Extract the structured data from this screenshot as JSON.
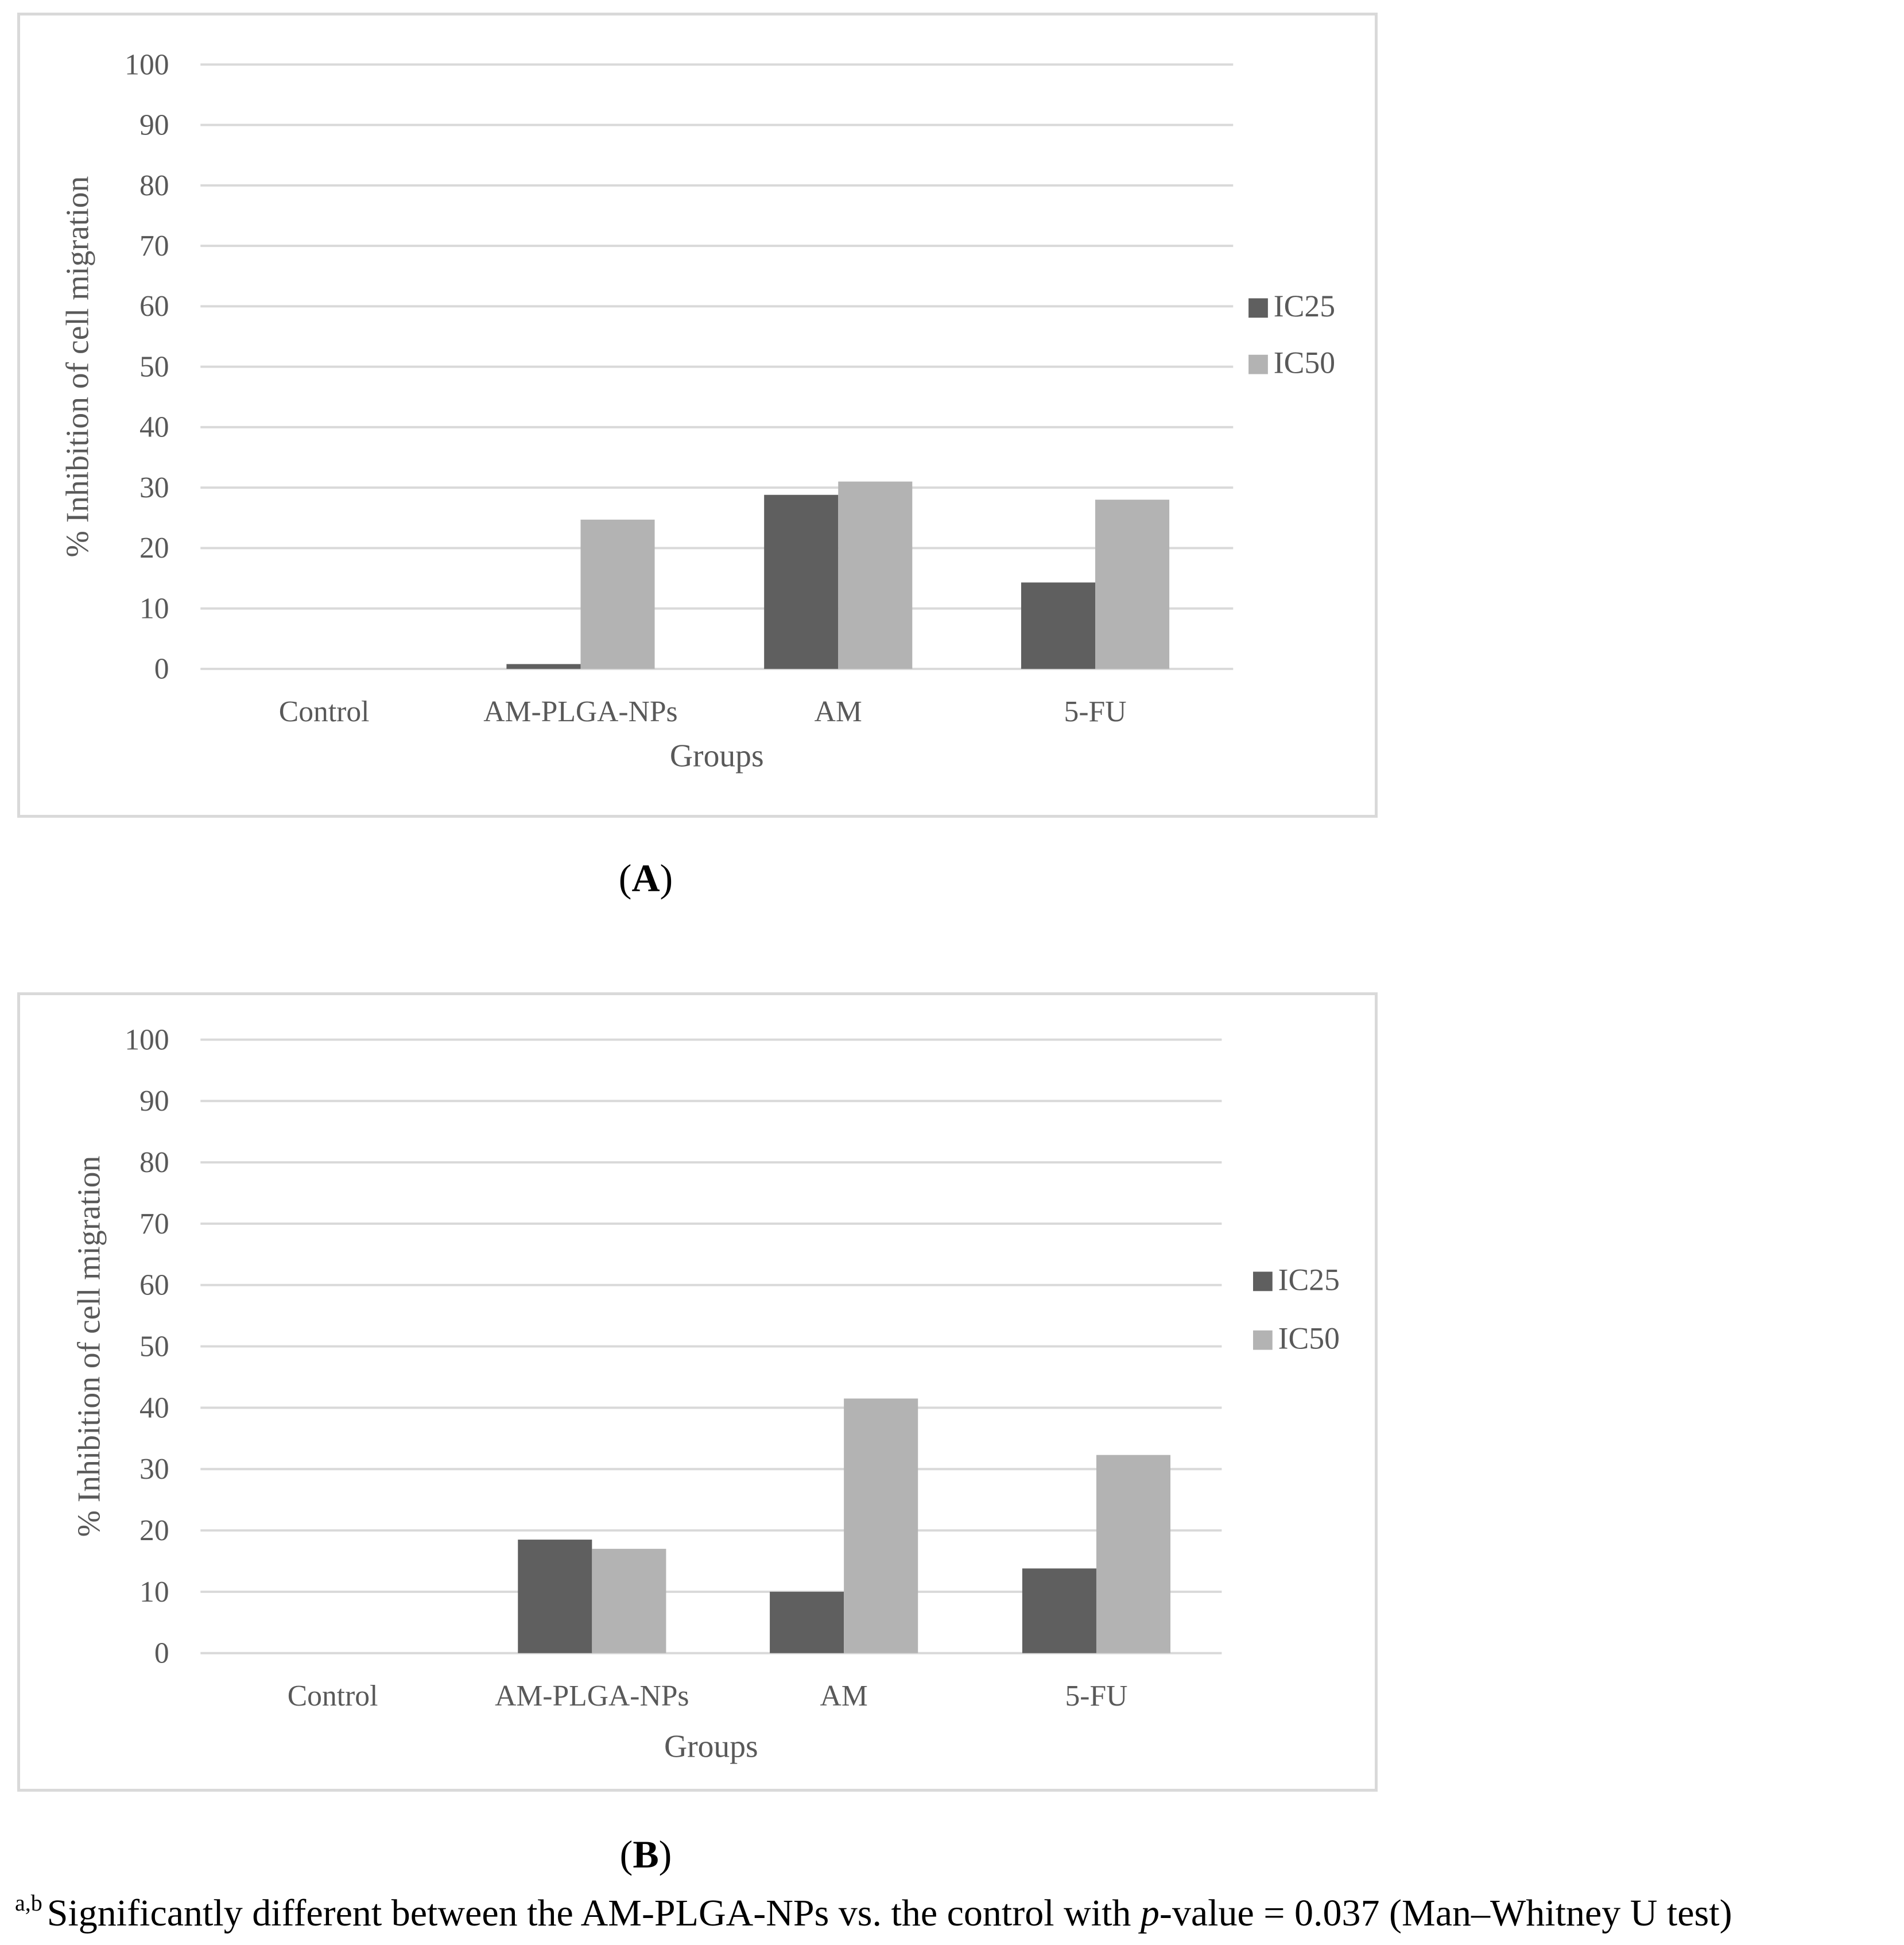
{
  "colors": {
    "IC25": "#5f5f5f",
    "IC50": "#b3b3b3",
    "grid": "#d9d9d9",
    "text": "#595959"
  },
  "chart_data": [
    {
      "panel": "A",
      "type": "bar",
      "categories": [
        "Control",
        "AM-PLGA-NPs",
        "AM",
        "5-FU"
      ],
      "series": [
        {
          "name": "IC25",
          "values": [
            0,
            0.8,
            28.8,
            14.3
          ]
        },
        {
          "name": "IC50",
          "values": [
            0,
            24.7,
            31.0,
            28.0
          ]
        }
      ],
      "yticks": [
        "0",
        "10",
        "20",
        "30",
        "40",
        "50",
        "60",
        "70",
        "80",
        "90",
        "100"
      ],
      "xlabel": "Groups",
      "ylabel": "% Inhibition of cell migration",
      "ylim": [
        0,
        100
      ],
      "grid": true,
      "legend": "right"
    },
    {
      "panel": "B",
      "type": "bar",
      "categories": [
        "Control",
        "AM-PLGA-NPs",
        "AM",
        "5-FU"
      ],
      "series": [
        {
          "name": "IC25",
          "values": [
            0,
            18.5,
            10.0,
            13.8
          ]
        },
        {
          "name": "IC50",
          "values": [
            0,
            17.0,
            41.5,
            32.3
          ]
        }
      ],
      "yticks": [
        "0",
        "10",
        "20",
        "30",
        "40",
        "50",
        "60",
        "70",
        "80",
        "90",
        "100"
      ],
      "xlabel": "Groups",
      "ylabel": "% Inhibition of cell migration",
      "ylim": [
        0,
        100
      ],
      "grid": true,
      "legend": "right"
    }
  ],
  "panel_labels": {
    "a": "A",
    "b": "B"
  },
  "footnote": {
    "sup": "a,b",
    "text_before": "Significantly different between the AM-PLGA-NPs vs. the control with ",
    "p": "p",
    "text_after": "-value = 0.037 (Man–Whitney U test)"
  }
}
